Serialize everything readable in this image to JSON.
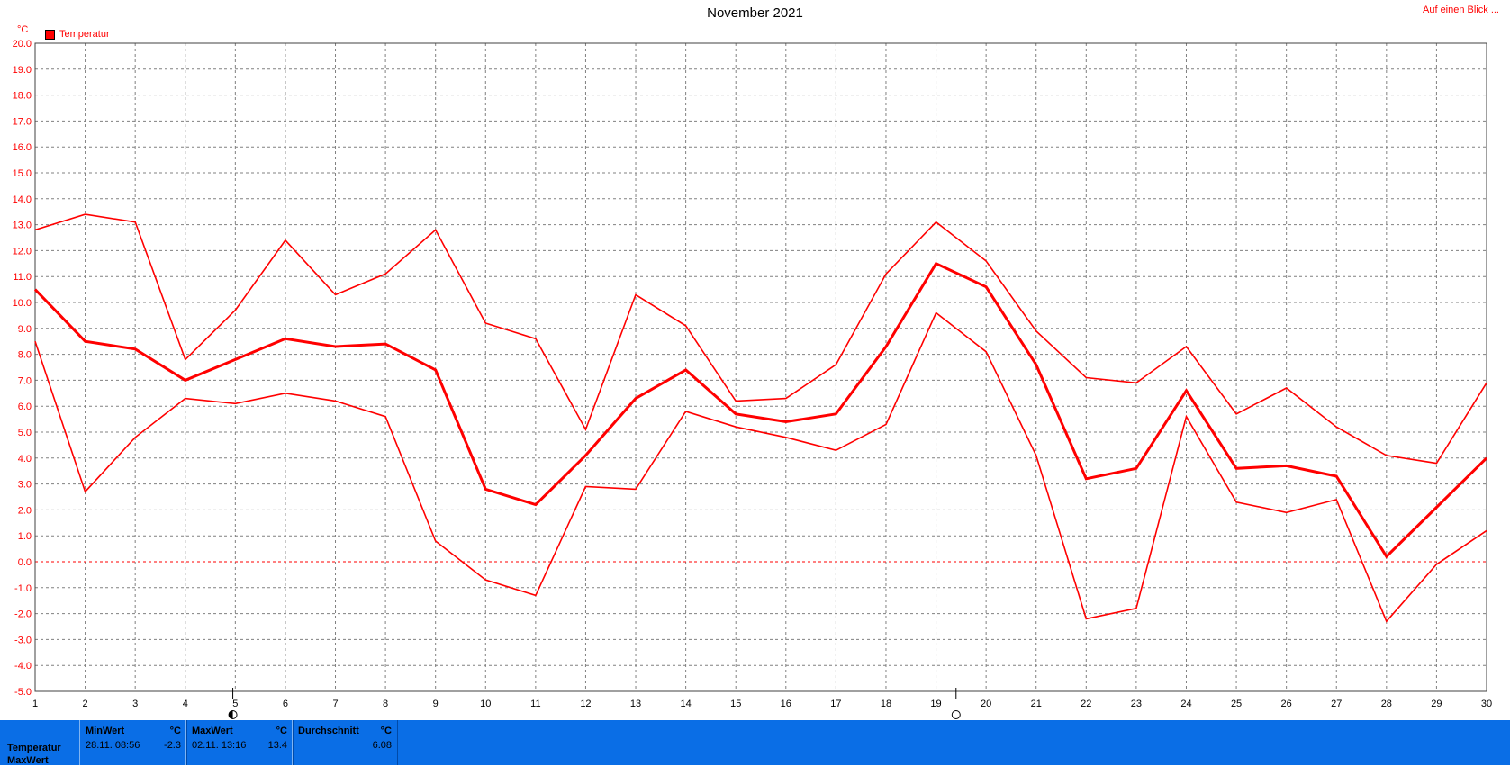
{
  "header": {
    "title": "November 2021",
    "glance_link": "Auf einen Blick ..."
  },
  "colors": {
    "series": "#ff0000",
    "grid": "#808080",
    "stats_bar": "#0a6ee6"
  },
  "chart_data": {
    "type": "line",
    "title": "November 2021",
    "ylabel": "°C",
    "xlabel": "",
    "ylim": [
      -5,
      20
    ],
    "ytick_step": 1,
    "xlim": [
      1,
      30
    ],
    "grid": true,
    "legend": {
      "entries": [
        "Temperatur"
      ],
      "placement": "top-left"
    },
    "x": [
      1,
      2,
      3,
      4,
      5,
      6,
      7,
      8,
      9,
      10,
      11,
      12,
      13,
      14,
      15,
      16,
      17,
      18,
      19,
      20,
      21,
      22,
      23,
      24,
      25,
      26,
      27,
      28,
      29,
      30
    ],
    "series": [
      {
        "name": "Temperatur",
        "role": "max",
        "values": [
          12.8,
          13.4,
          13.1,
          7.8,
          9.7,
          12.4,
          10.3,
          11.1,
          12.8,
          9.2,
          8.6,
          5.1,
          10.3,
          9.1,
          6.2,
          6.3,
          7.6,
          11.1,
          13.1,
          11.6,
          8.9,
          7.1,
          6.9,
          8.3,
          5.7,
          6.7,
          5.2,
          4.1,
          3.8,
          6.9
        ]
      },
      {
        "name": "Temperatur",
        "role": "mean",
        "values": [
          10.5,
          8.5,
          8.2,
          7.0,
          7.8,
          8.6,
          8.3,
          8.4,
          7.4,
          2.8,
          2.2,
          4.1,
          6.3,
          7.4,
          5.7,
          5.4,
          5.7,
          8.3,
          11.5,
          10.6,
          7.6,
          3.2,
          3.6,
          6.6,
          3.6,
          3.7,
          3.3,
          0.2,
          2.1,
          4.0
        ]
      },
      {
        "name": "Temperatur",
        "role": "min",
        "values": [
          8.5,
          2.7,
          4.8,
          6.3,
          6.1,
          6.5,
          6.2,
          5.6,
          0.8,
          -0.7,
          -1.3,
          2.9,
          2.8,
          5.8,
          5.2,
          4.8,
          4.3,
          5.3,
          9.6,
          8.1,
          4.1,
          -2.2,
          -1.8,
          5.6,
          2.3,
          1.9,
          2.4,
          -2.3,
          -0.1,
          1.2
        ]
      }
    ],
    "moon_phase_markers": [
      {
        "day": 4.95,
        "phase": "last-quarter"
      },
      {
        "day": 19.4,
        "phase": "full-moon"
      }
    ]
  },
  "stats": {
    "row_labels": [
      "Temperatur",
      "MaxWert"
    ],
    "boxes": [
      {
        "head": "MinWert",
        "unit": "°C",
        "date": "28.11.  08:56",
        "value": "-2.3"
      },
      {
        "head": "MaxWert",
        "unit": "°C",
        "date": "02.11.  13:16",
        "value": "13.4"
      },
      {
        "head": "Durchschnitt",
        "unit": "°C",
        "date": "",
        "value": "6.08"
      }
    ]
  }
}
